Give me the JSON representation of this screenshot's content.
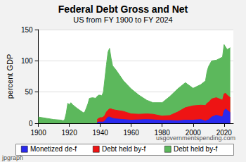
{
  "chart_data": {
    "type": "area",
    "title": "Federal Debt Gross and Net",
    "subtitle": "US from FY 1900 to FY 2024",
    "y_label": "percent GDP",
    "annotations": [
      "usgovernmentspending.com",
      "jpgraph"
    ],
    "stacked": true,
    "grid": true,
    "legend": "bottom",
    "x": [
      1900,
      1905,
      1910,
      1915,
      1916,
      1917,
      1918,
      1919,
      1920,
      1921,
      1922,
      1925,
      1929,
      1930,
      1932,
      1933,
      1935,
      1937,
      1938,
      1939,
      1940,
      1941,
      1942,
      1943,
      1944,
      1945,
      1946,
      1947,
      1948,
      1950,
      1955,
      1960,
      1965,
      1970,
      1974,
      1980,
      1985,
      1990,
      1995,
      2000,
      2005,
      2008,
      2009,
      2010,
      2012,
      2015,
      2019,
      2020,
      2021,
      2022,
      2024
    ],
    "xlim": [
      1900,
      2026
    ],
    "xticks": [
      1900,
      1920,
      1940,
      1960,
      1980,
      2000,
      2020
    ],
    "ylim": [
      0,
      150
    ],
    "yticks": [
      0,
      50,
      100,
      150
    ],
    "series": [
      {
        "name": "Monetized de-f",
        "color": "#2a2aee",
        "values": [
          null,
          null,
          null,
          null,
          null,
          null,
          null,
          null,
          null,
          null,
          null,
          null,
          null,
          null,
          null,
          null,
          null,
          null,
          1,
          2,
          2,
          2,
          2,
          4,
          7,
          10,
          10,
          9,
          8,
          7,
          6,
          5,
          5.5,
          6,
          5.5,
          4.5,
          4.5,
          4,
          5,
          5,
          6,
          3.5,
          5,
          5.5,
          10,
          13,
          10,
          20,
          23,
          21,
          17
        ]
      },
      {
        "name": "Debt held by-f",
        "color": "#ee1414",
        "values": [
          null,
          null,
          null,
          null,
          null,
          null,
          null,
          null,
          null,
          null,
          null,
          null,
          null,
          null,
          null,
          null,
          null,
          null,
          5,
          6,
          7,
          7,
          8,
          9,
          11,
          11,
          13,
          14,
          14,
          14,
          13,
          10,
          9,
          9,
          9,
          7,
          8,
          14,
          20,
          23,
          23,
          25,
          27,
          28,
          29,
          28,
          27,
          27,
          25,
          24,
          24
        ]
      },
      {
        "name": "Debt held by-f",
        "color": "#5cb85c",
        "values": [
          10,
          8,
          6,
          5,
          4,
          6,
          16,
          32,
          30,
          33,
          30,
          24,
          17,
          18,
          31,
          40,
          41,
          40,
          37,
          37,
          36,
          35,
          40,
          59,
          76,
          93,
          97,
          81,
          70,
          65,
          49,
          40,
          30.5,
          22,
          18.5,
          21.5,
          30.5,
          37,
          40,
          28,
          33,
          39.5,
          51,
          57.5,
          61,
          60,
          69,
          79,
          74,
          73,
          80
        ]
      }
    ]
  }
}
